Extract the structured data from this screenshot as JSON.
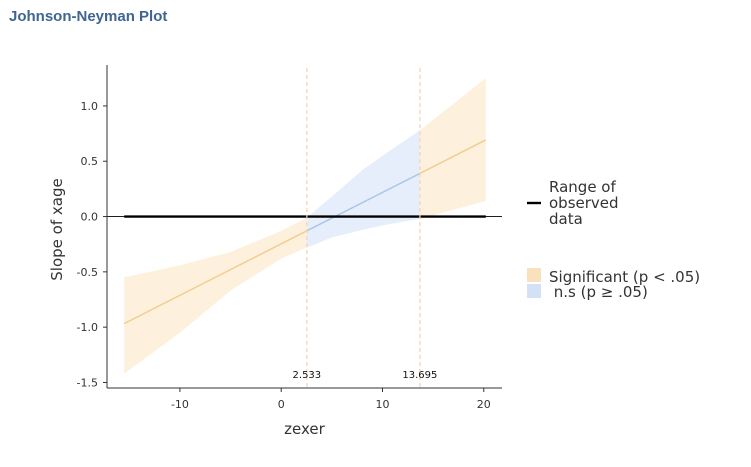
{
  "title": "Johnson-Neyman Plot",
  "chart_data": {
    "type": "line",
    "xlabel": "zexer",
    "ylabel": "Slope of  xage",
    "xlim": [
      -17.2,
      21.8
    ],
    "ylim": [
      -1.55,
      1.37
    ],
    "x_ticks": [
      -10,
      0,
      10,
      20
    ],
    "x_tick_labels": [
      "-10",
      "0",
      "10",
      "20"
    ],
    "y_ticks": [
      -1.5,
      -1.0,
      -0.5,
      0.0,
      0.5,
      1.0
    ],
    "y_tick_labels": [
      "-1.5",
      "-1.0",
      "-0.5",
      "0.0",
      "0.5",
      "1.0"
    ],
    "grid": false,
    "observed_range": [
      -15.5,
      20.2
    ],
    "slope_line": {
      "intercept": -0.247,
      "slope": 0.0465
    },
    "confidence_band": {
      "x": [
        -15.5,
        -10,
        -5,
        0,
        2.533,
        5,
        8,
        10,
        13.695,
        17,
        20.2
      ],
      "lower": [
        -1.42,
        -1.05,
        -0.67,
        -0.38,
        -0.28,
        -0.19,
        -0.12,
        -0.08,
        -0.02,
        0.06,
        0.14
      ],
      "upper": [
        -0.55,
        -0.44,
        -0.32,
        -0.13,
        -0.01,
        0.18,
        0.42,
        0.55,
        0.78,
        1.02,
        1.25
      ]
    },
    "jn_bounds": [
      2.533,
      13.695
    ],
    "jn_bound_labels": [
      "2.533",
      "13.695"
    ],
    "regions": [
      {
        "name": "Significant (p < .05)",
        "x_from": -15.5,
        "x_to": 2.533,
        "significant": true
      },
      {
        "name": "n.s (p ≥ .05)",
        "x_from": 2.533,
        "x_to": 13.695,
        "significant": false
      },
      {
        "name": "Significant (p < .05)",
        "x_from": 13.695,
        "x_to": 20.2,
        "significant": true
      }
    ],
    "legend_position": "right",
    "legend": {
      "range_label_lines": [
        "Range of",
        "observed",
        "data"
      ],
      "significant_label": "Significant (p < .05)",
      "ns_label": " n.s (p ≥ .05)"
    },
    "colors": {
      "sig_fill": "#fdf1de",
      "sig_line": "#f2cd8f",
      "ns_fill": "#e6eefb",
      "ns_line": "#a9c6ea",
      "legend_sig": "#f9e1bb",
      "legend_ns": "#d3e1f6",
      "bound_line": "#f5d3b0",
      "range_line": "#000000"
    }
  }
}
